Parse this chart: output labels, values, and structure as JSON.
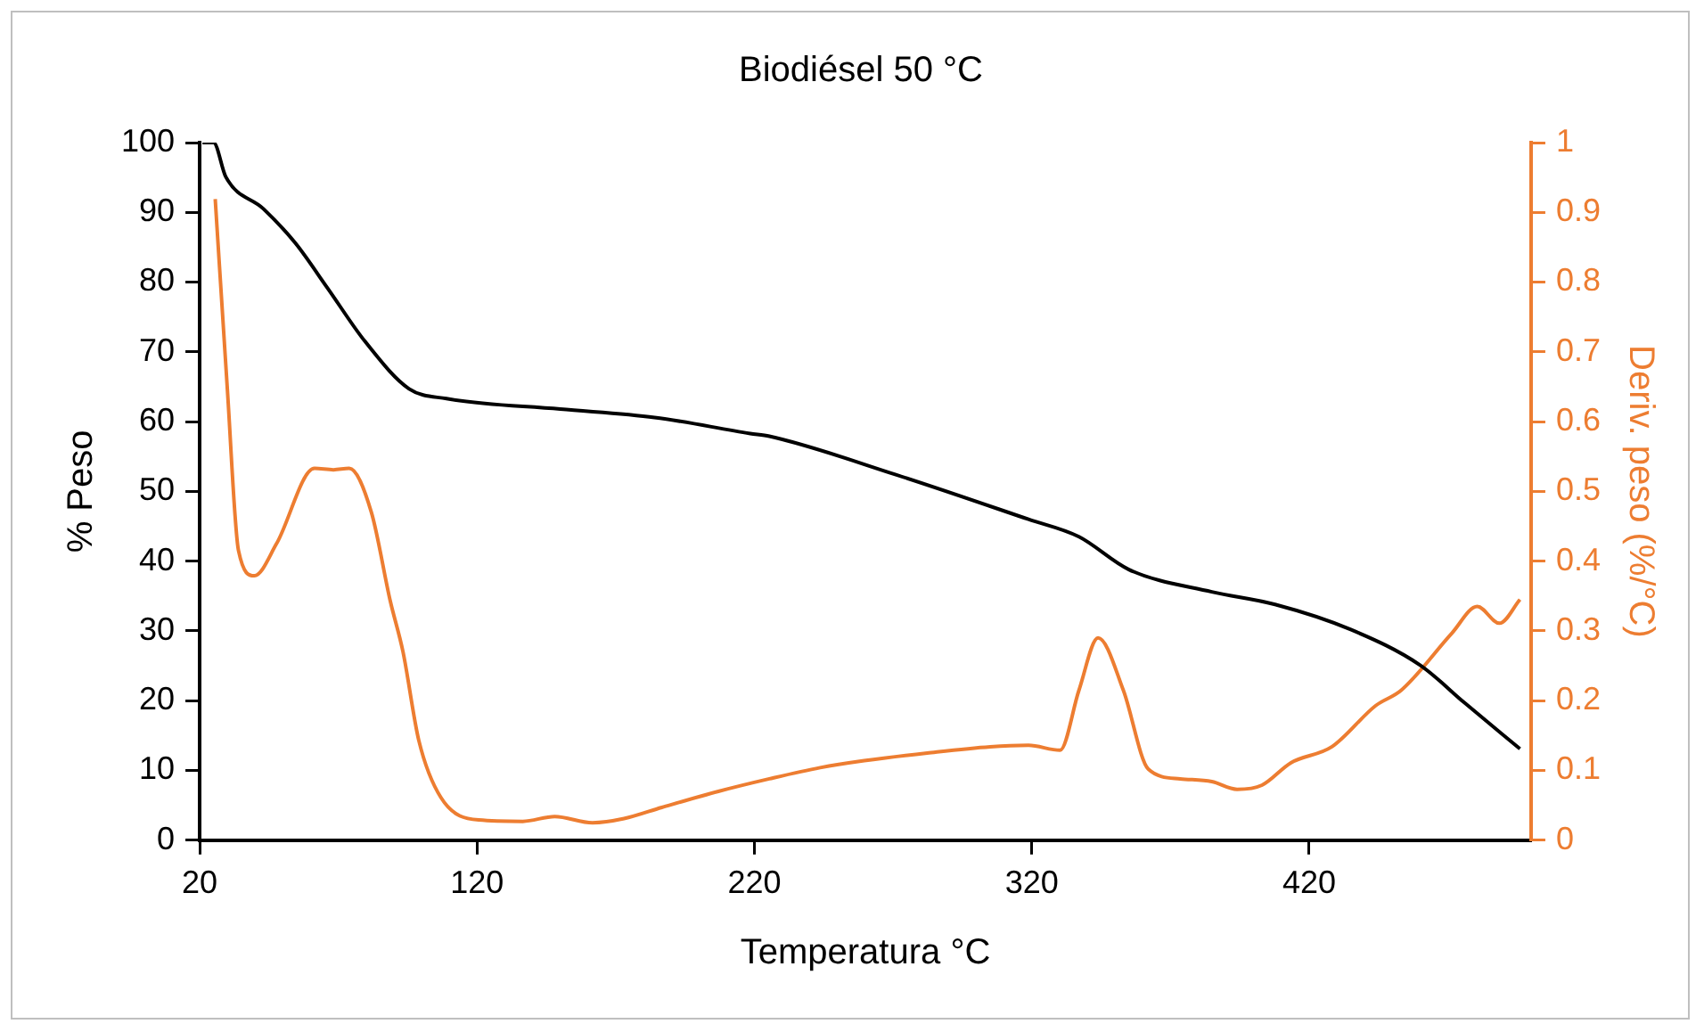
{
  "chart_data": {
    "type": "line",
    "title": "Biodiésel 50 °C",
    "xlabel": "Temperatura °C",
    "ylabel": "% Peso",
    "y2label": "Deriv. peso (%/°C)",
    "xlim": [
      20,
      500
    ],
    "xticks": [
      20,
      120,
      220,
      320,
      420
    ],
    "ylim": [
      0,
      100
    ],
    "yticks": [
      0,
      10,
      20,
      30,
      40,
      50,
      60,
      70,
      80,
      90,
      100
    ],
    "y2lim": [
      0,
      1
    ],
    "y2ticks": [
      0,
      0.1,
      0.2,
      0.3,
      0.4,
      0.5,
      0.6,
      0.7,
      0.8,
      0.9,
      1
    ],
    "grid": false,
    "legend": false,
    "marker": "none",
    "line_style": "solid",
    "series": [
      {
        "color": "#000000",
        "x": [
          21,
          25,
          29.4,
          43,
          54.5,
          66,
          79.6,
          95.5,
          109,
          150,
          184,
          218.5,
          225.4,
          271,
          318.8,
          337,
          355,
          384.9,
          407.7,
          435,
          460,
          476,
          496
        ],
        "values": [
          100,
          100,
          95.1,
          90.5,
          85.6,
          79.2,
          71.5,
          64.7,
          63.3,
          61.8,
          60.6,
          58.3,
          57.9,
          52.4,
          46,
          43.5,
          38.8,
          35.6,
          33.8,
          30.2,
          25.1,
          19.7,
          13.1
        ]
      },
      {
        "color": "#ed7d31",
        "axis": "y2",
        "x": [
          25.6,
          29.9,
          34,
          39.7,
          47.7,
          61.4,
          68.2,
          73.9,
          81.9,
          88.7,
          93.3,
          99,
          107,
          120.6,
          136.5,
          148,
          161.6,
          173,
          186.6,
          207,
          225.4,
          243.7,
          259.6,
          282.3,
          305,
          318.8,
          330.2,
          337,
          343.9,
          353,
          362,
          373.5,
          384.9,
          394,
          403,
          413.4,
          428.2,
          444,
          453.2,
          471.5,
          480.6,
          488.6,
          496
        ],
        "values": [
          0.919,
          0.651,
          0.415,
          0.379,
          0.425,
          0.533,
          0.531,
          0.533,
          0.47,
          0.343,
          0.27,
          0.143,
          0.061,
          0.029,
          0.027,
          0.034,
          0.025,
          0.031,
          0.047,
          0.07,
          0.088,
          0.104,
          0.114,
          0.125,
          0.134,
          0.136,
          0.129,
          0.215,
          0.29,
          0.215,
          0.102,
          0.088,
          0.084,
          0.073,
          0.079,
          0.111,
          0.134,
          0.193,
          0.215,
          0.297,
          0.335,
          0.311,
          0.345
        ]
      }
    ]
  }
}
